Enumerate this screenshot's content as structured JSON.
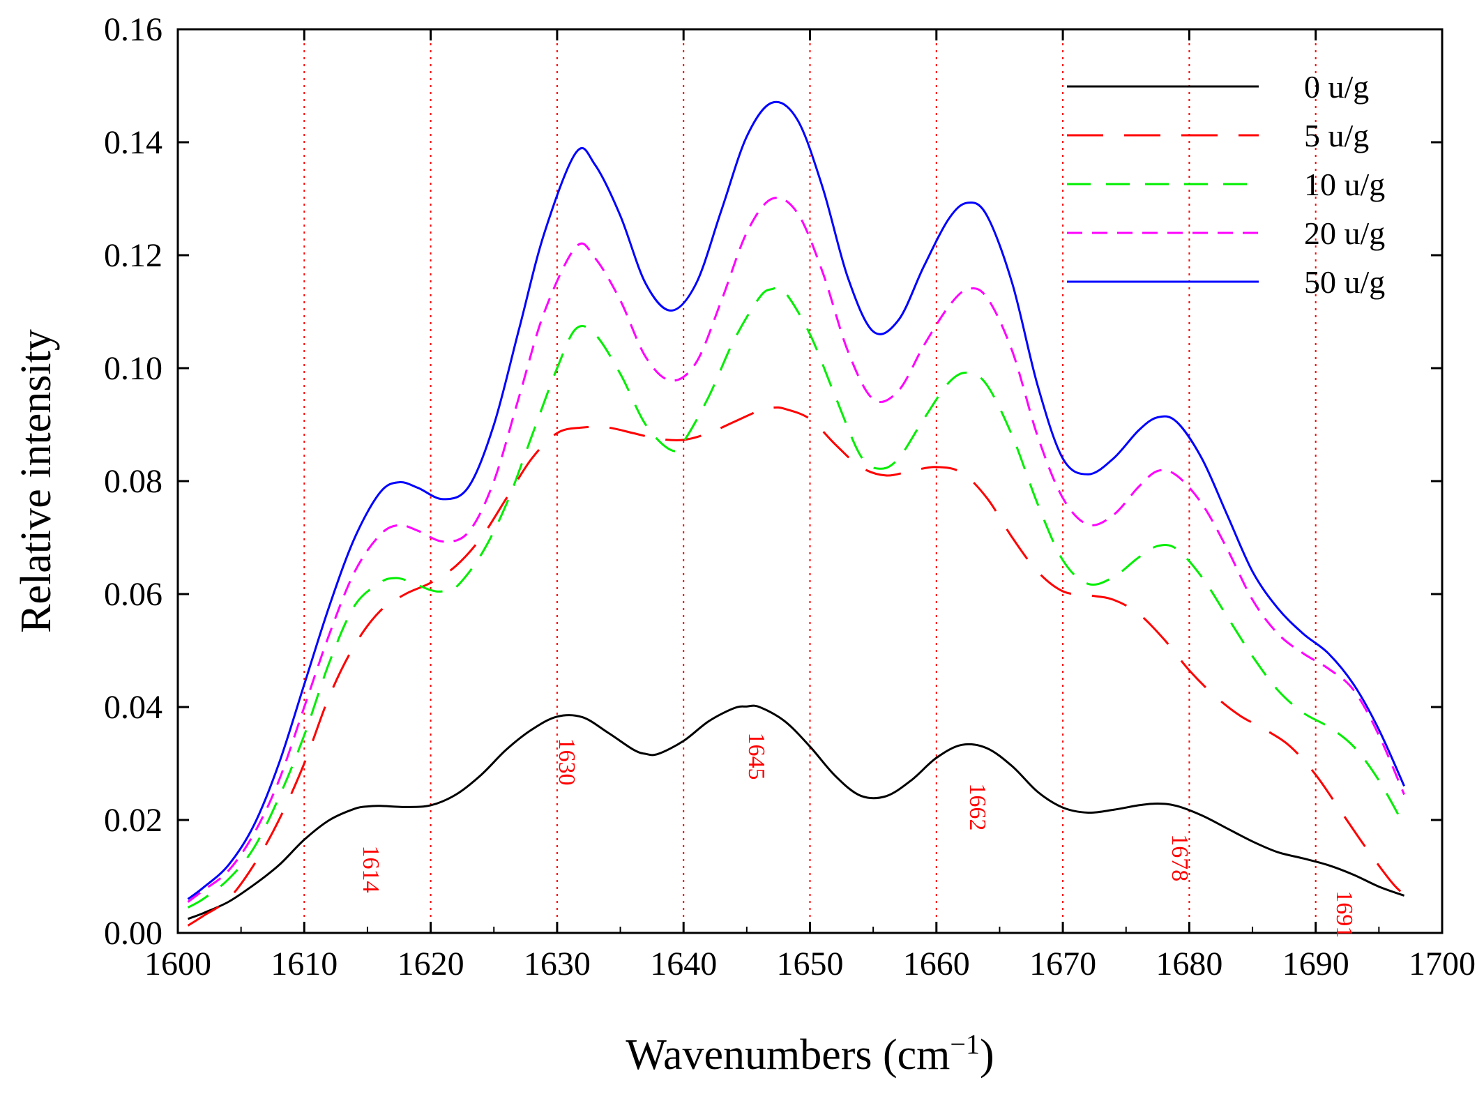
{
  "chart_data": {
    "type": "line",
    "title": "",
    "xlabel": "Wavenumbers (cm",
    "xlabel_sup": "−1",
    "xlabel_close": ")",
    "ylabel": "Relative intensity",
    "xlim": [
      1600,
      1700
    ],
    "ylim": [
      0,
      0.16
    ],
    "x_ticks": [
      "1600",
      "1610",
      "1620",
      "1630",
      "1640",
      "1650",
      "1660",
      "1670",
      "1680",
      "1690",
      "1700"
    ],
    "y_ticks": [
      "0.00",
      "0.02",
      "0.04",
      "0.06",
      "0.08",
      "0.10",
      "0.12",
      "0.14",
      "0.16"
    ],
    "reference_lines": [
      1610,
      1620,
      1630,
      1640,
      1650,
      1660,
      1670,
      1680,
      1690
    ],
    "peak_annotations": [
      {
        "label": "1614",
        "x": 1614,
        "y": 0.0155
      },
      {
        "label": "1630",
        "x": 1629.5,
        "y": 0.0345
      },
      {
        "label": "1645",
        "x": 1644.5,
        "y": 0.0355
      },
      {
        "label": "1662",
        "x": 1662,
        "y": 0.0265
      },
      {
        "label": "1678",
        "x": 1678,
        "y": 0.0175
      },
      {
        "label": "1691",
        "x": 1691,
        "y": 0.0075
      }
    ],
    "legend_position": "top-right",
    "series": [
      {
        "name": "0 u/g",
        "color": "#000000",
        "dash": "solid",
        "x": [
          1600.8,
          1602,
          1604,
          1606,
          1608,
          1610,
          1612,
          1614,
          1615,
          1616,
          1618,
          1620,
          1622,
          1624,
          1626,
          1628,
          1630,
          1632,
          1634,
          1636,
          1637,
          1638,
          1640,
          1642,
          1644,
          1645,
          1646,
          1648,
          1650,
          1652,
          1654,
          1656,
          1658,
          1660,
          1662,
          1664,
          1666,
          1668,
          1670,
          1672,
          1674,
          1676,
          1677.5,
          1679,
          1681,
          1683,
          1685,
          1687,
          1689,
          1691,
          1693,
          1695,
          1697
        ],
        "values": [
          0.0025,
          0.0035,
          0.0055,
          0.0085,
          0.012,
          0.0165,
          0.02,
          0.022,
          0.0224,
          0.0225,
          0.0223,
          0.0226,
          0.0245,
          0.028,
          0.0325,
          0.036,
          0.0383,
          0.0382,
          0.0355,
          0.0325,
          0.0317,
          0.0317,
          0.034,
          0.0375,
          0.0398,
          0.0401,
          0.04,
          0.0375,
          0.033,
          0.0278,
          0.0243,
          0.0242,
          0.027,
          0.031,
          0.0333,
          0.0327,
          0.0295,
          0.025,
          0.0222,
          0.0213,
          0.0218,
          0.0226,
          0.0229,
          0.0225,
          0.0208,
          0.0185,
          0.0162,
          0.0143,
          0.0132,
          0.012,
          0.0103,
          0.0082,
          0.0066
        ]
      },
      {
        "name": "5 u/g",
        "color": "#ff0000",
        "dash": "long",
        "x": [
          1600.8,
          1602,
          1604,
          1606,
          1608,
          1610,
          1612,
          1614,
          1616,
          1618,
          1620,
          1622,
          1624,
          1626,
          1628,
          1630,
          1632,
          1634,
          1636,
          1638,
          1640,
          1642,
          1644,
          1646,
          1647,
          1648,
          1650,
          1652,
          1654,
          1656,
          1658,
          1660,
          1662,
          1664,
          1666,
          1668,
          1670,
          1672,
          1674,
          1676,
          1678,
          1680,
          1682,
          1684,
          1686,
          1688,
          1690,
          1692,
          1694,
          1696,
          1697
        ],
        "values": [
          0.0013,
          0.003,
          0.006,
          0.012,
          0.02,
          0.03,
          0.042,
          0.051,
          0.057,
          0.06,
          0.062,
          0.065,
          0.07,
          0.077,
          0.084,
          0.0885,
          0.0895,
          0.0895,
          0.0885,
          0.0875,
          0.0873,
          0.0885,
          0.0905,
          0.0925,
          0.093,
          0.0928,
          0.091,
          0.0865,
          0.0825,
          0.081,
          0.0818,
          0.0825,
          0.0815,
          0.077,
          0.07,
          0.064,
          0.0605,
          0.0598,
          0.059,
          0.0565,
          0.052,
          0.0465,
          0.042,
          0.0385,
          0.036,
          0.033,
          0.028,
          0.0215,
          0.015,
          0.009,
          0.0068
        ]
      },
      {
        "name": "10 u/g",
        "color": "#00ee00",
        "dash": "medium",
        "x": [
          1600.8,
          1602,
          1604,
          1606,
          1608,
          1610,
          1612,
          1614,
          1616,
          1617,
          1618,
          1620,
          1621,
          1622,
          1624,
          1626,
          1628,
          1630,
          1631.5,
          1633,
          1635,
          1637,
          1639,
          1640,
          1642,
          1644,
          1646,
          1647,
          1648,
          1650,
          1652,
          1654,
          1655.5,
          1657,
          1659,
          1661,
          1662.5,
          1664,
          1666,
          1668,
          1670,
          1672,
          1674,
          1676,
          1677.5,
          1679,
          1681,
          1683,
          1685,
          1687,
          1689,
          1691,
          1693,
          1695,
          1697
        ],
        "values": [
          0.0045,
          0.006,
          0.0095,
          0.015,
          0.024,
          0.035,
          0.048,
          0.058,
          0.062,
          0.0628,
          0.0625,
          0.0607,
          0.0605,
          0.0612,
          0.067,
          0.076,
          0.088,
          0.1,
          0.107,
          0.106,
          0.099,
          0.09,
          0.0855,
          0.087,
          0.095,
          0.105,
          0.1125,
          0.114,
          0.1135,
          0.106,
          0.095,
          0.0845,
          0.0822,
          0.084,
          0.091,
          0.0975,
          0.0992,
          0.097,
          0.088,
          0.076,
          0.066,
          0.0618,
          0.063,
          0.0665,
          0.0685,
          0.068,
          0.063,
          0.056,
          0.049,
          0.043,
          0.039,
          0.0365,
          0.033,
          0.027,
          0.019
        ]
      },
      {
        "name": "20 u/g",
        "color": "#ff00ff",
        "dash": "short",
        "x": [
          1600.8,
          1602,
          1604,
          1606,
          1608,
          1610,
          1612,
          1614,
          1616,
          1617.5,
          1619,
          1621,
          1623,
          1625,
          1627,
          1629,
          1631.5,
          1633,
          1635,
          1637,
          1639,
          1641,
          1643,
          1645,
          1647,
          1649,
          1651,
          1653,
          1655,
          1657,
          1659,
          1661,
          1662.5,
          1664,
          1666,
          1668,
          1670,
          1672,
          1674,
          1676,
          1677.5,
          1679,
          1681,
          1683,
          1685,
          1687,
          1689,
          1691,
          1693,
          1695,
          1697
        ],
        "values": [
          0.0055,
          0.0075,
          0.011,
          0.0175,
          0.027,
          0.04,
          0.053,
          0.064,
          0.0705,
          0.0722,
          0.0712,
          0.0693,
          0.071,
          0.08,
          0.095,
          0.11,
          0.1215,
          0.1195,
          0.112,
          0.102,
          0.0978,
          0.101,
          0.112,
          0.124,
          0.13,
          0.1275,
          0.117,
          0.103,
          0.0945,
          0.096,
          0.104,
          0.111,
          0.114,
          0.1125,
          0.103,
          0.088,
          0.077,
          0.0723,
          0.074,
          0.079,
          0.0818,
          0.081,
          0.076,
          0.068,
          0.059,
          0.053,
          0.0495,
          0.0468,
          0.043,
          0.035,
          0.0245
        ]
      },
      {
        "name": "50 u/g",
        "color": "#0000ff",
        "dash": "solid",
        "x": [
          1600.8,
          1602,
          1604,
          1606,
          1608,
          1610,
          1612,
          1614,
          1616,
          1617.5,
          1619,
          1621,
          1623,
          1625,
          1627,
          1629,
          1631.5,
          1633,
          1635,
          1637,
          1639,
          1641,
          1643,
          1645,
          1647,
          1649,
          1651,
          1653,
          1655,
          1657,
          1659,
          1661,
          1662.5,
          1664,
          1666,
          1668,
          1670,
          1672,
          1674,
          1676,
          1677.5,
          1679,
          1681,
          1683,
          1685,
          1687,
          1689,
          1691,
          1693,
          1695,
          1697
        ],
        "values": [
          0.006,
          0.008,
          0.012,
          0.019,
          0.03,
          0.044,
          0.058,
          0.07,
          0.078,
          0.0798,
          0.0788,
          0.0768,
          0.079,
          0.09,
          0.107,
          0.124,
          0.1382,
          0.136,
          0.127,
          0.115,
          0.1102,
          0.115,
          0.128,
          0.141,
          0.147,
          0.144,
          0.132,
          0.116,
          0.1065,
          0.1085,
          0.118,
          0.1265,
          0.1293,
          0.127,
          0.115,
          0.097,
          0.084,
          0.0812,
          0.084,
          0.089,
          0.0913,
          0.0905,
          0.084,
          0.074,
          0.064,
          0.0575,
          0.053,
          0.0495,
          0.044,
          0.036,
          0.026
        ]
      }
    ]
  }
}
